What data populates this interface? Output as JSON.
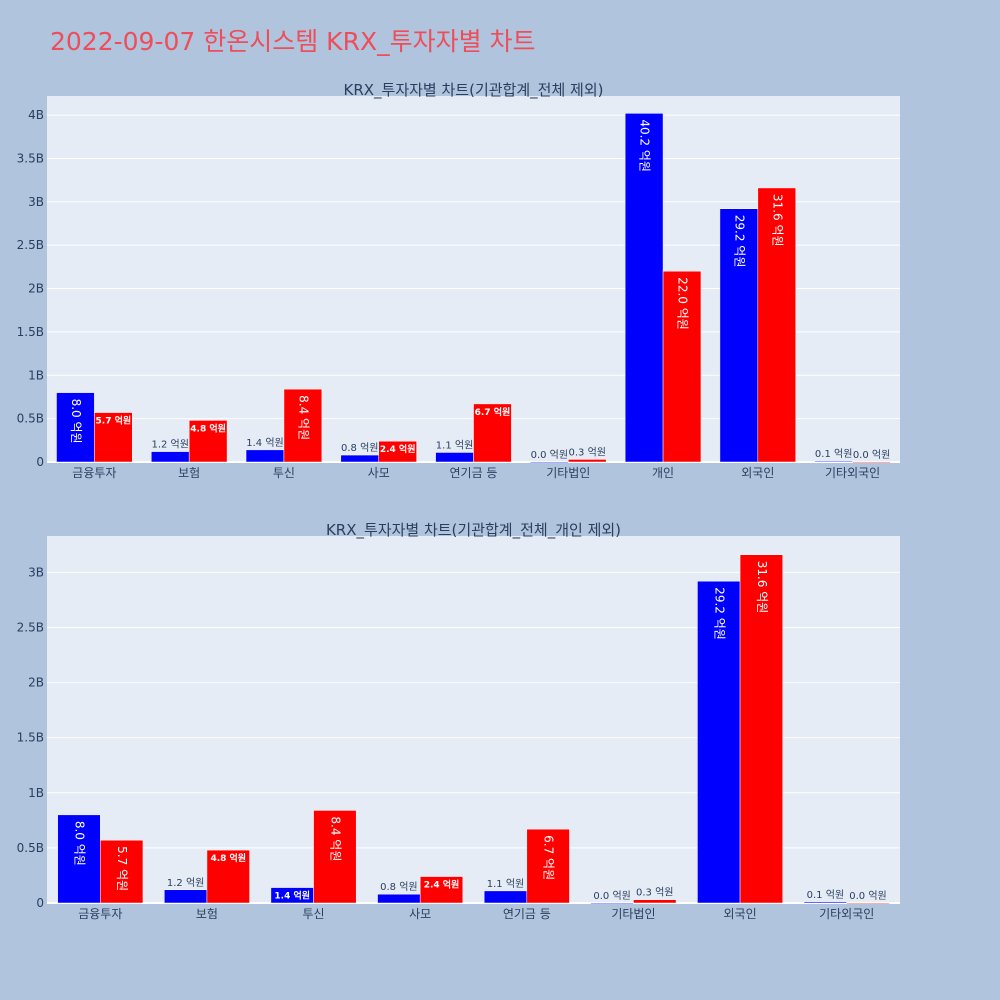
{
  "page_title": "2022-09-07 한온시스템 KRX_투자자별 차트",
  "colors": {
    "buy": "#0000ff",
    "sell": "#ff0000",
    "plot_bg": "#e5ecf6",
    "page_bg": "#b0c4de",
    "title": "#ee4d5a"
  },
  "chart_data": [
    {
      "type": "bar",
      "title": "KRX_투자자별 차트(기관합계_전체 제외)",
      "categories": [
        "금융투자",
        "보험",
        "투신",
        "사모",
        "연기금 등",
        "기타법인",
        "개인",
        "외국인",
        "기타외국인"
      ],
      "series": [
        {
          "values": [
            0.8,
            0.12,
            0.14,
            0.08,
            0.11,
            0.002,
            4.02,
            2.92,
            0.01
          ],
          "labels": [
            "8.0 억원",
            "1.2 억원",
            "1.4 억원",
            "0.8 억원",
            "1.1 억원",
            "0.0 억원",
            "40.2 억원",
            "29.2 억원",
            "0.1 억원"
          ]
        },
        {
          "values": [
            0.57,
            0.48,
            0.84,
            0.24,
            0.67,
            0.03,
            2.2,
            3.16,
            0.002
          ],
          "labels": [
            "5.7 억원",
            "4.8 억원",
            "8.4 억원",
            "2.4 억원",
            "6.7 억원",
            "0.3 억원",
            "22.0 억원",
            "31.6 억원",
            "0.0 억원"
          ]
        }
      ],
      "yticks": [
        0,
        0.5,
        1,
        1.5,
        2,
        2.5,
        3,
        3.5,
        4
      ],
      "ytick_labels": [
        "0",
        "0.5B",
        "1B",
        "1.5B",
        "2B",
        "2.5B",
        "3B",
        "3.5B",
        "4B"
      ],
      "ylim": [
        0,
        4.22
      ],
      "y_unit": "B"
    },
    {
      "type": "bar",
      "title": "KRX_투자자별 차트(기관합계_전체_개인 제외)",
      "categories": [
        "금융투자",
        "보험",
        "투신",
        "사모",
        "연기금 등",
        "기타법인",
        "외국인",
        "기타외국인"
      ],
      "series": [
        {
          "values": [
            0.8,
            0.12,
            0.14,
            0.08,
            0.11,
            0.002,
            2.92,
            0.01
          ],
          "labels": [
            "8.0 억원",
            "1.2 억원",
            "1.4 억원",
            "0.8 억원",
            "1.1 억원",
            "0.0 억원",
            "29.2 억원",
            "0.1 억원"
          ]
        },
        {
          "values": [
            0.57,
            0.48,
            0.84,
            0.24,
            0.67,
            0.03,
            3.16,
            0.002
          ],
          "labels": [
            "5.7 억원",
            "4.8 억원",
            "8.4 억원",
            "2.4 억원",
            "6.7 억원",
            "0.3 억원",
            "31.6 억원",
            "0.0 억원"
          ]
        }
      ],
      "yticks": [
        0,
        0.5,
        1,
        1.5,
        2,
        2.5,
        3
      ],
      "ytick_labels": [
        "0",
        "0.5B",
        "1B",
        "1.5B",
        "2B",
        "2.5B",
        "3B"
      ],
      "ylim": [
        0,
        3.33
      ],
      "y_unit": "B"
    }
  ]
}
